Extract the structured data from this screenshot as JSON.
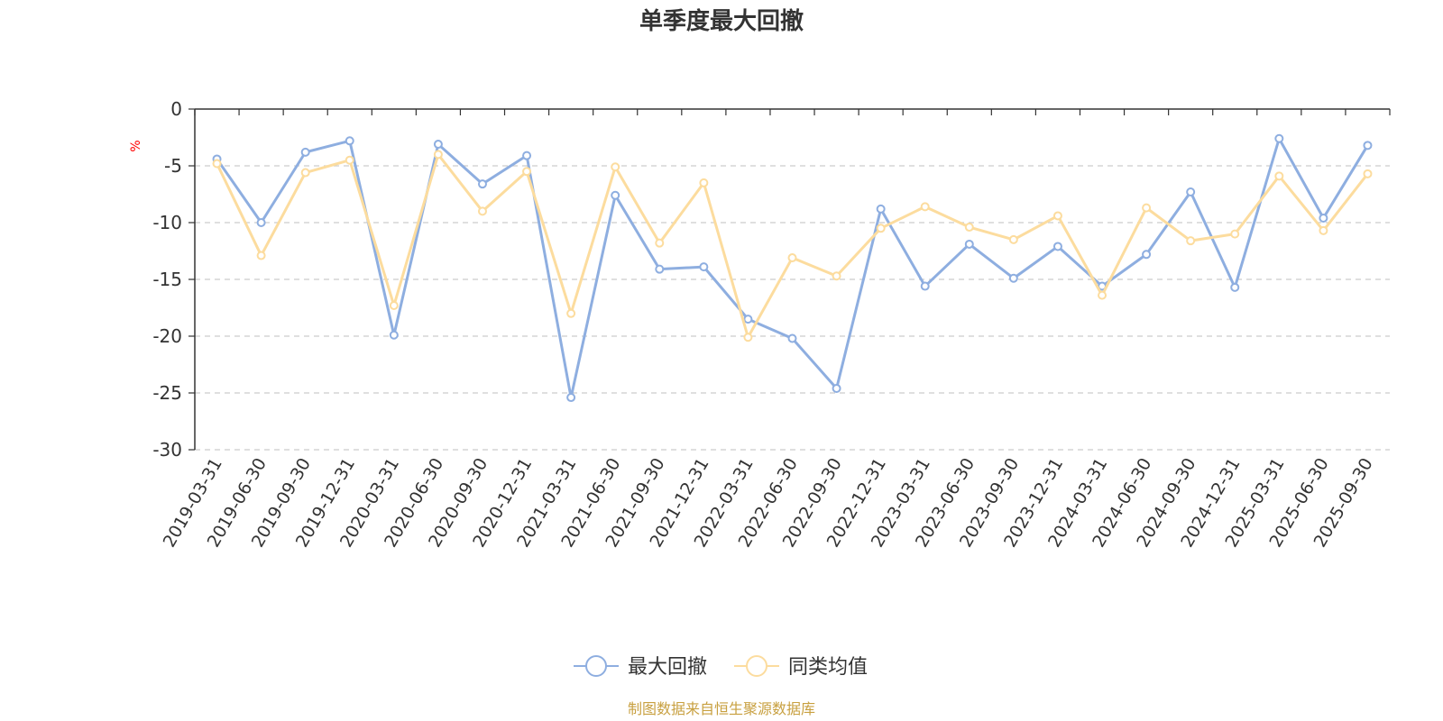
{
  "chart_data": {
    "type": "line",
    "title": "单季度最大回撤",
    "ylabel": "%",
    "ylim": [
      -30,
      0
    ],
    "yticks": [
      0,
      -5,
      -10,
      -15,
      -20,
      -25,
      -30
    ],
    "grid": true,
    "categories": [
      "2019-03-31",
      "2019-06-30",
      "2019-09-30",
      "2019-12-31",
      "2020-03-31",
      "2020-06-30",
      "2020-09-30",
      "2020-12-31",
      "2021-03-31",
      "2021-06-30",
      "2021-09-30",
      "2021-12-31",
      "2022-03-31",
      "2022-06-30",
      "2022-09-30",
      "2022-12-31",
      "2023-03-31",
      "2023-06-30",
      "2023-09-30",
      "2023-12-31",
      "2024-03-31",
      "2024-06-30",
      "2024-09-30",
      "2024-12-31",
      "2025-03-31",
      "2025-06-30",
      "2025-09-30"
    ],
    "series": [
      {
        "name": "最大回撤",
        "color": "#8eaee0",
        "values": [
          -4.4,
          -10.0,
          -3.8,
          -2.8,
          -19.9,
          -3.1,
          -6.6,
          -4.1,
          -25.4,
          -7.6,
          -14.1,
          -13.9,
          -18.5,
          -20.2,
          -24.6,
          -8.8,
          -15.6,
          -11.9,
          -14.9,
          -12.1,
          -15.6,
          -12.8,
          -7.3,
          -15.7,
          -2.6,
          -9.6,
          -3.2
        ]
      },
      {
        "name": "同类均值",
        "color": "#fcdc9e",
        "values": [
          -4.8,
          -12.9,
          -5.6,
          -4.5,
          -17.3,
          -4.0,
          -9.0,
          -5.5,
          -18.0,
          -5.1,
          -11.8,
          -6.5,
          -20.1,
          -13.1,
          -14.7,
          -10.5,
          -8.6,
          -10.4,
          -11.5,
          -9.4,
          -16.4,
          -8.7,
          -11.6,
          -11.0,
          -5.9,
          -10.7,
          -5.7
        ]
      }
    ],
    "legend_position": "bottom-center"
  },
  "footer": {
    "source": "制图数据来自恒生聚源数据库"
  }
}
